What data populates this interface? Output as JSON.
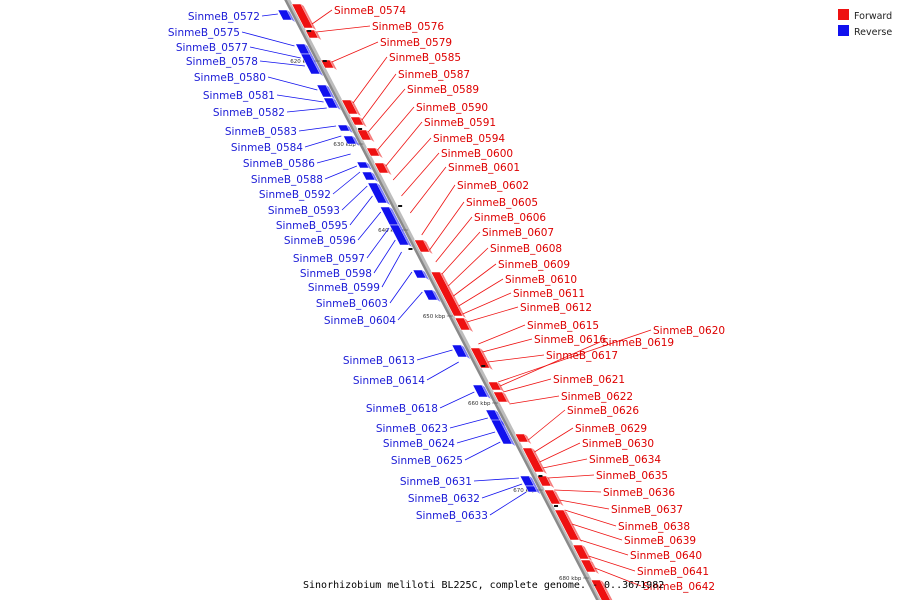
{
  "legend": {
    "forward": {
      "label": "Forward",
      "color": "#ee1111"
    },
    "reverse": {
      "label": "Reverse",
      "color": "#1111ee"
    }
  },
  "caption": "Sinorhizobium meliloti BL225C, complete genome. - 0..3671982",
  "ticks": [
    "620 kbp",
    "630 kbp",
    "640 kbp",
    "650 kbp",
    "660 kbp",
    "670 kbp",
    "680 kbp"
  ],
  "forward_genes": [
    "SinmeB_0574",
    "SinmeB_0576",
    "SinmeB_0579",
    "SinmeB_0585",
    "SinmeB_0587",
    "SinmeB_0589",
    "SinmeB_0590",
    "SinmeB_0591",
    "SinmeB_0594",
    "SinmeB_0600",
    "SinmeB_0601",
    "SinmeB_0602",
    "SinmeB_0605",
    "SinmeB_0606",
    "SinmeB_0607",
    "SinmeB_0608",
    "SinmeB_0609",
    "SinmeB_0610",
    "SinmeB_0611",
    "SinmeB_0612",
    "SinmeB_0615",
    "SinmeB_0616",
    "SinmeB_0617",
    "SinmeB_0620",
    "SinmeB_0619",
    "SinmeB_0621",
    "SinmeB_0622",
    "SinmeB_0626",
    "SinmeB_0629",
    "SinmeB_0630",
    "SinmeB_0634",
    "SinmeB_0635",
    "SinmeB_0636",
    "SinmeB_0637",
    "SinmeB_0638",
    "SinmeB_0639",
    "SinmeB_0640",
    "SinmeB_0641",
    "SinmeB_0642"
  ],
  "reverse_genes": [
    "SinmeB_0572",
    "SinmeB_0575",
    "SinmeB_0577",
    "SinmeB_0578",
    "SinmeB_0580",
    "SinmeB_0581",
    "SinmeB_0582",
    "SinmeB_0583",
    "SinmeB_0584",
    "SinmeB_0586",
    "SinmeB_0588",
    "SinmeB_0592",
    "SinmeB_0593",
    "SinmeB_0595",
    "SinmeB_0596",
    "SinmeB_0597",
    "SinmeB_0598",
    "SinmeB_0599",
    "SinmeB_0603",
    "SinmeB_0604",
    "SinmeB_0613",
    "SinmeB_0614",
    "SinmeB_0618",
    "SinmeB_0623",
    "SinmeB_0624",
    "SinmeB_0625",
    "SinmeB_0631",
    "SinmeB_0632",
    "SinmeB_0633"
  ]
}
